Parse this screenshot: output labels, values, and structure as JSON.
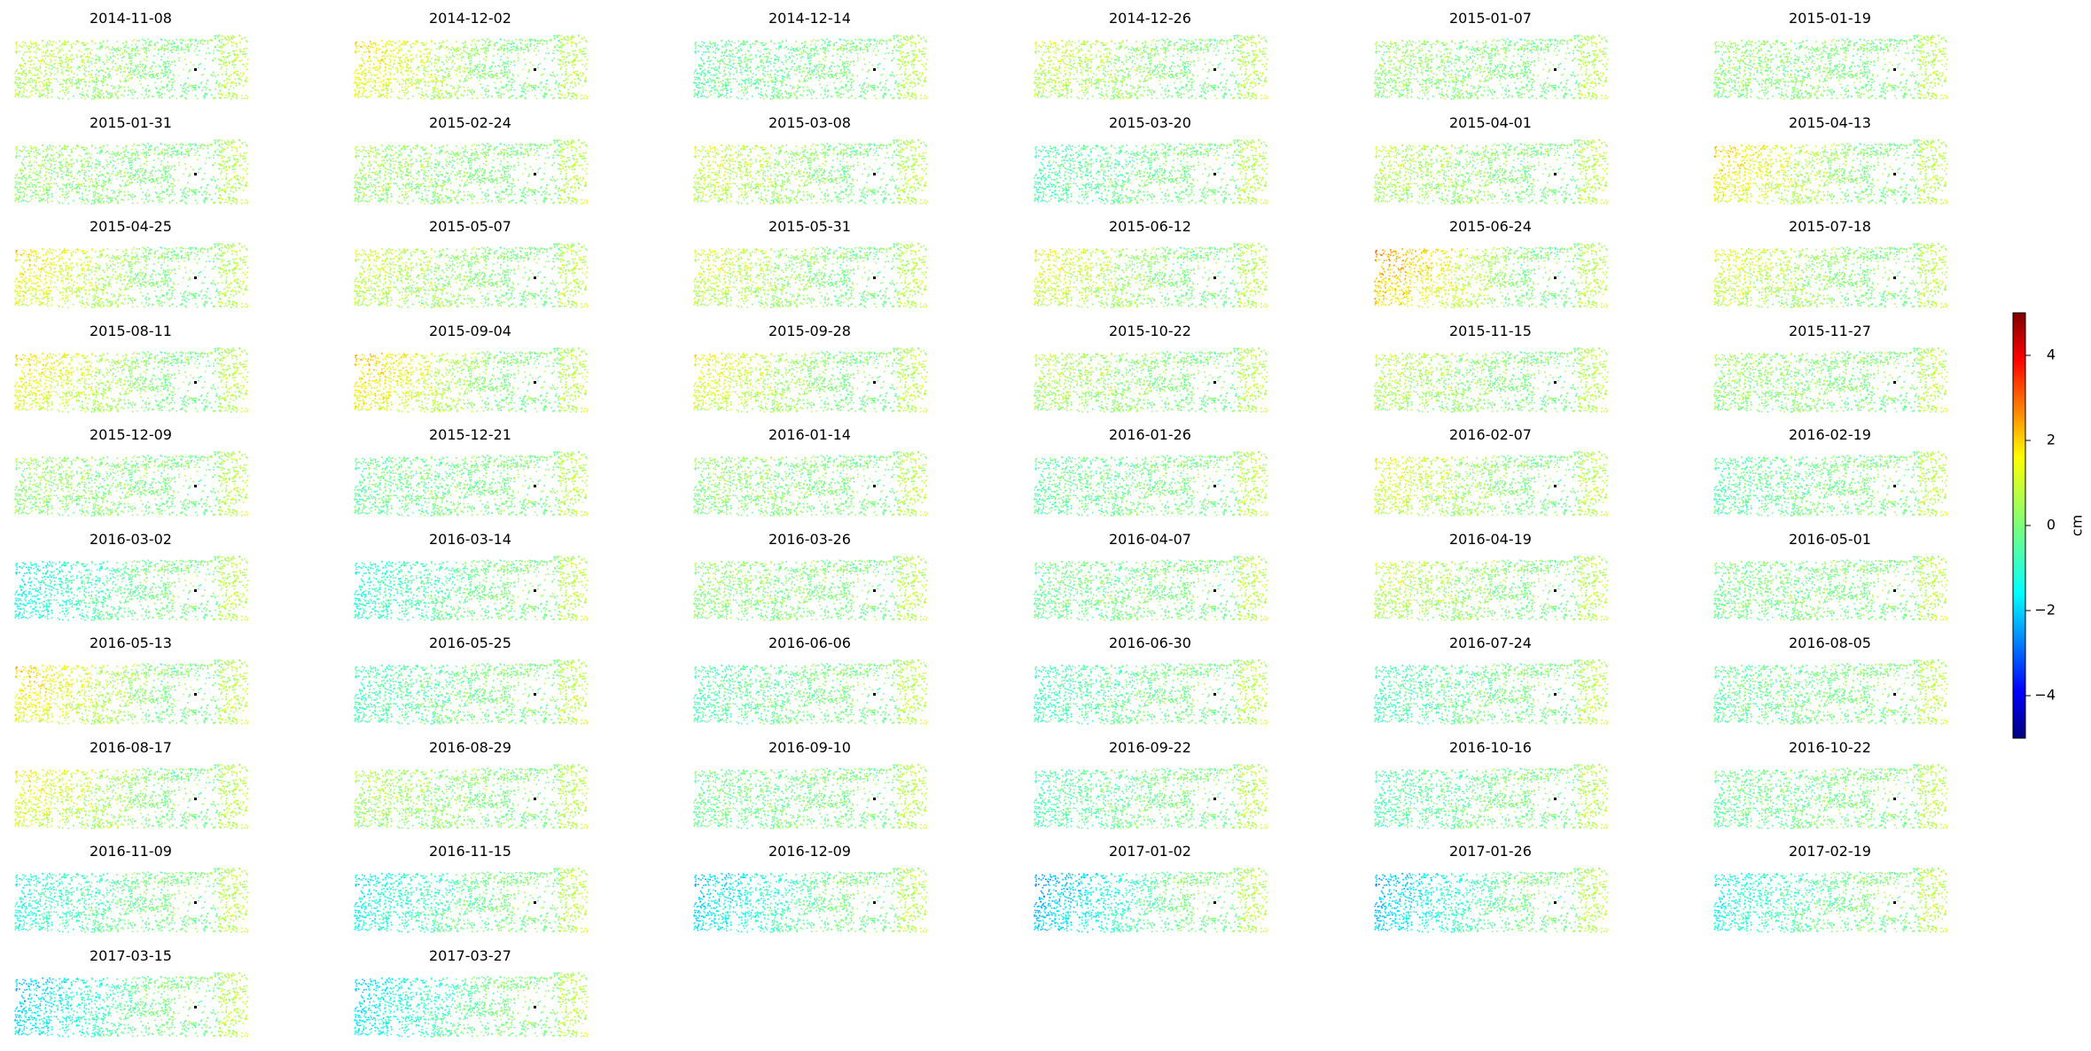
{
  "chart_data": {
    "type": "heatmap",
    "description_kind": "small-multiples displacement maps",
    "panels": [
      {
        "date": "2014-11-08",
        "west_mean": 0.8
      },
      {
        "date": "2014-12-02",
        "west_mean": 1.6
      },
      {
        "date": "2014-12-14",
        "west_mean": -0.4
      },
      {
        "date": "2014-12-26",
        "west_mean": 0.9
      },
      {
        "date": "2015-01-07",
        "west_mean": 0.3
      },
      {
        "date": "2015-01-19",
        "west_mean": 0.2
      },
      {
        "date": "2015-01-31",
        "west_mean": 0.3
      },
      {
        "date": "2015-02-24",
        "west_mean": 0.4
      },
      {
        "date": "2015-03-08",
        "west_mean": 1.0
      },
      {
        "date": "2015-03-20",
        "west_mean": -0.6
      },
      {
        "date": "2015-04-01",
        "west_mean": 0.7
      },
      {
        "date": "2015-04-13",
        "west_mean": 1.8
      },
      {
        "date": "2015-04-25",
        "west_mean": 1.6
      },
      {
        "date": "2015-05-07",
        "west_mean": 0.9
      },
      {
        "date": "2015-05-31",
        "west_mean": 1.0
      },
      {
        "date": "2015-06-12",
        "west_mean": 1.2
      },
      {
        "date": "2015-06-24",
        "west_mean": 2.4
      },
      {
        "date": "2015-07-18",
        "west_mean": 1.1
      },
      {
        "date": "2015-08-11",
        "west_mean": 1.6
      },
      {
        "date": "2015-09-04",
        "west_mean": 1.9
      },
      {
        "date": "2015-09-28",
        "west_mean": 1.3
      },
      {
        "date": "2015-10-22",
        "west_mean": 0.6
      },
      {
        "date": "2015-11-15",
        "west_mean": 0.7
      },
      {
        "date": "2015-11-27",
        "west_mean": 0.3
      },
      {
        "date": "2015-12-09",
        "west_mean": 0.3
      },
      {
        "date": "2015-12-21",
        "west_mean": -0.3
      },
      {
        "date": "2016-01-14",
        "west_mean": 0.2
      },
      {
        "date": "2016-01-26",
        "west_mean": -0.4
      },
      {
        "date": "2016-02-07",
        "west_mean": 1.2
      },
      {
        "date": "2016-02-19",
        "west_mean": -0.5
      },
      {
        "date": "2016-03-02",
        "west_mean": -1.4
      },
      {
        "date": "2016-03-14",
        "west_mean": -1.1
      },
      {
        "date": "2016-03-26",
        "west_mean": 0.2
      },
      {
        "date": "2016-04-07",
        "west_mean": -0.2
      },
      {
        "date": "2016-04-19",
        "west_mean": 0.8
      },
      {
        "date": "2016-05-01",
        "west_mean": -0.1
      },
      {
        "date": "2016-05-13",
        "west_mean": 1.8
      },
      {
        "date": "2016-05-25",
        "west_mean": -0.7
      },
      {
        "date": "2016-06-06",
        "west_mean": -0.6
      },
      {
        "date": "2016-06-30",
        "west_mean": -0.8
      },
      {
        "date": "2016-07-24",
        "west_mean": -0.7
      },
      {
        "date": "2016-08-05",
        "west_mean": -0.4
      },
      {
        "date": "2016-08-17",
        "west_mean": 1.4
      },
      {
        "date": "2016-08-29",
        "west_mean": 0.5
      },
      {
        "date": "2016-09-10",
        "west_mean": -0.2
      },
      {
        "date": "2016-09-22",
        "west_mean": -0.6
      },
      {
        "date": "2016-10-16",
        "west_mean": -0.6
      },
      {
        "date": "2016-10-22",
        "west_mean": -0.3
      },
      {
        "date": "2016-11-09",
        "west_mean": -1.2
      },
      {
        "date": "2016-11-15",
        "west_mean": -1.5
      },
      {
        "date": "2016-12-09",
        "west_mean": -2.0
      },
      {
        "date": "2017-01-02",
        "west_mean": -2.4
      },
      {
        "date": "2017-01-26",
        "west_mean": -2.2
      },
      {
        "date": "2017-02-19",
        "west_mean": -1.4
      },
      {
        "date": "2017-03-15",
        "west_mean": -2.0
      },
      {
        "date": "2017-03-27",
        "west_mean": -1.8
      }
    ],
    "colorbar": {
      "label": "cm",
      "vmin": -5,
      "vmax": 5,
      "ticks": [
        4,
        2,
        0,
        -2,
        -4
      ],
      "colormap": "jet"
    }
  }
}
